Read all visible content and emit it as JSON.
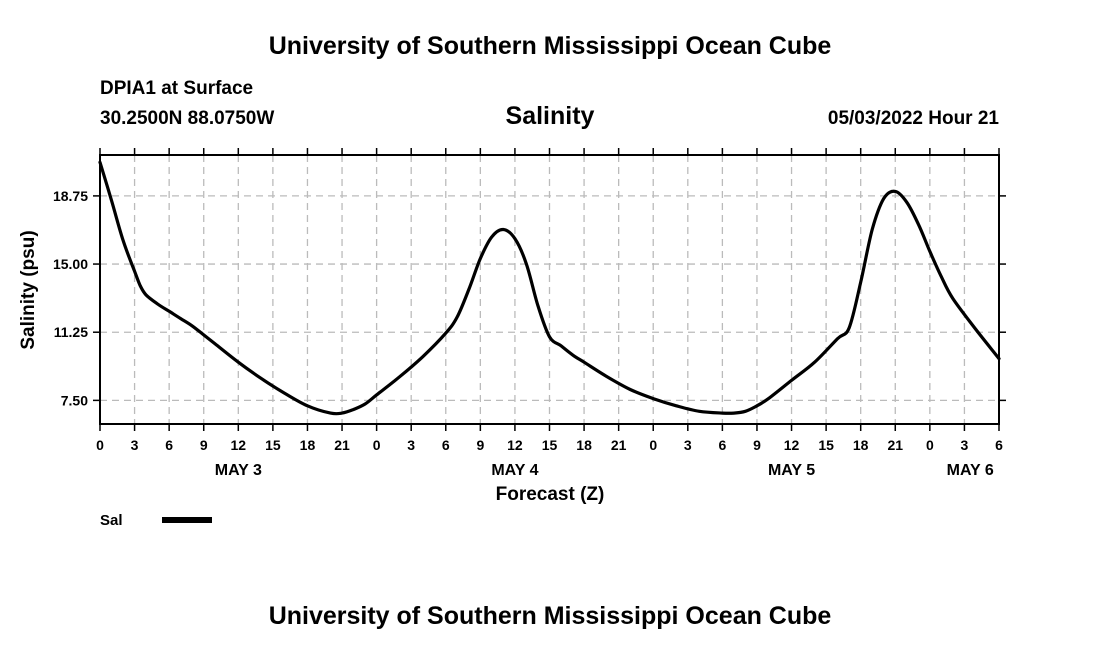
{
  "header": {
    "title": "University of Southern Mississippi Ocean Cube",
    "station": "DPIA1 at Surface",
    "coords": "30.2500N  88.0750W",
    "chart_title": "Salinity",
    "timestamp": "05/03/2022 Hour 21",
    "footer_title": "University of Southern Mississippi Ocean Cube"
  },
  "legend": {
    "label": "Sal"
  },
  "colors": {
    "line": "#000000",
    "grid": "#bbbbbb"
  },
  "chart_data": {
    "type": "line",
    "title": "Salinity",
    "xlabel": "Forecast (Z)",
    "ylabel": "Salinity (psu)",
    "x_unit": "forecast hour from May 3 00Z",
    "xlim": [
      0,
      78
    ],
    "ylim": [
      6.2,
      21.0
    ],
    "yticks": [
      7.5,
      11.25,
      15.0,
      18.75
    ],
    "ytick_labels": [
      "7.50",
      "11.25",
      "15.00",
      "18.75"
    ],
    "xticks": [
      0,
      3,
      6,
      9,
      12,
      15,
      18,
      21,
      24,
      27,
      30,
      33,
      36,
      39,
      42,
      45,
      48,
      51,
      54,
      57,
      60,
      63,
      66,
      69,
      72,
      75,
      78
    ],
    "xtick_labels": [
      "0",
      "3",
      "6",
      "9",
      "12",
      "15",
      "18",
      "21",
      "0",
      "3",
      "6",
      "9",
      "12",
      "15",
      "18",
      "21",
      "0",
      "3",
      "6",
      "9",
      "12",
      "15",
      "18",
      "21",
      "0",
      "3",
      "6"
    ],
    "date_labels": [
      {
        "label": "MAY 3",
        "x": 12
      },
      {
        "label": "MAY 4",
        "x": 36
      },
      {
        "label": "MAY 5",
        "x": 60
      },
      {
        "label": "MAY 6",
        "x": 75.5
      }
    ],
    "grid": true,
    "series": [
      {
        "name": "Sal",
        "x": [
          0,
          1,
          2,
          3,
          3.5,
          4,
          5,
          6,
          7,
          8,
          9,
          10,
          12,
          14,
          16,
          18,
          20,
          21,
          22,
          23,
          24,
          26,
          28,
          30,
          31,
          32,
          33,
          34,
          35,
          36,
          37,
          38,
          39,
          40,
          41,
          42,
          44,
          46,
          48,
          50,
          52,
          54,
          55,
          56,
          57,
          58,
          60,
          62,
          64,
          65,
          66,
          67,
          68,
          69,
          70,
          71,
          72,
          73,
          74,
          76,
          78
        ],
        "values": [
          20.6,
          18.5,
          16.3,
          14.6,
          13.8,
          13.3,
          12.8,
          12.4,
          12.0,
          11.6,
          11.1,
          10.6,
          9.6,
          8.7,
          7.9,
          7.2,
          6.8,
          6.8,
          7.0,
          7.3,
          7.8,
          8.8,
          9.9,
          11.2,
          12.1,
          13.6,
          15.3,
          16.5,
          16.9,
          16.4,
          15.0,
          12.7,
          11.0,
          10.5,
          10.0,
          9.6,
          8.8,
          8.1,
          7.6,
          7.2,
          6.9,
          6.8,
          6.8,
          6.9,
          7.2,
          7.6,
          8.6,
          9.6,
          10.9,
          11.5,
          14.0,
          16.9,
          18.6,
          19.0,
          18.4,
          17.2,
          15.7,
          14.3,
          13.1,
          11.4,
          9.8
        ]
      }
    ]
  }
}
